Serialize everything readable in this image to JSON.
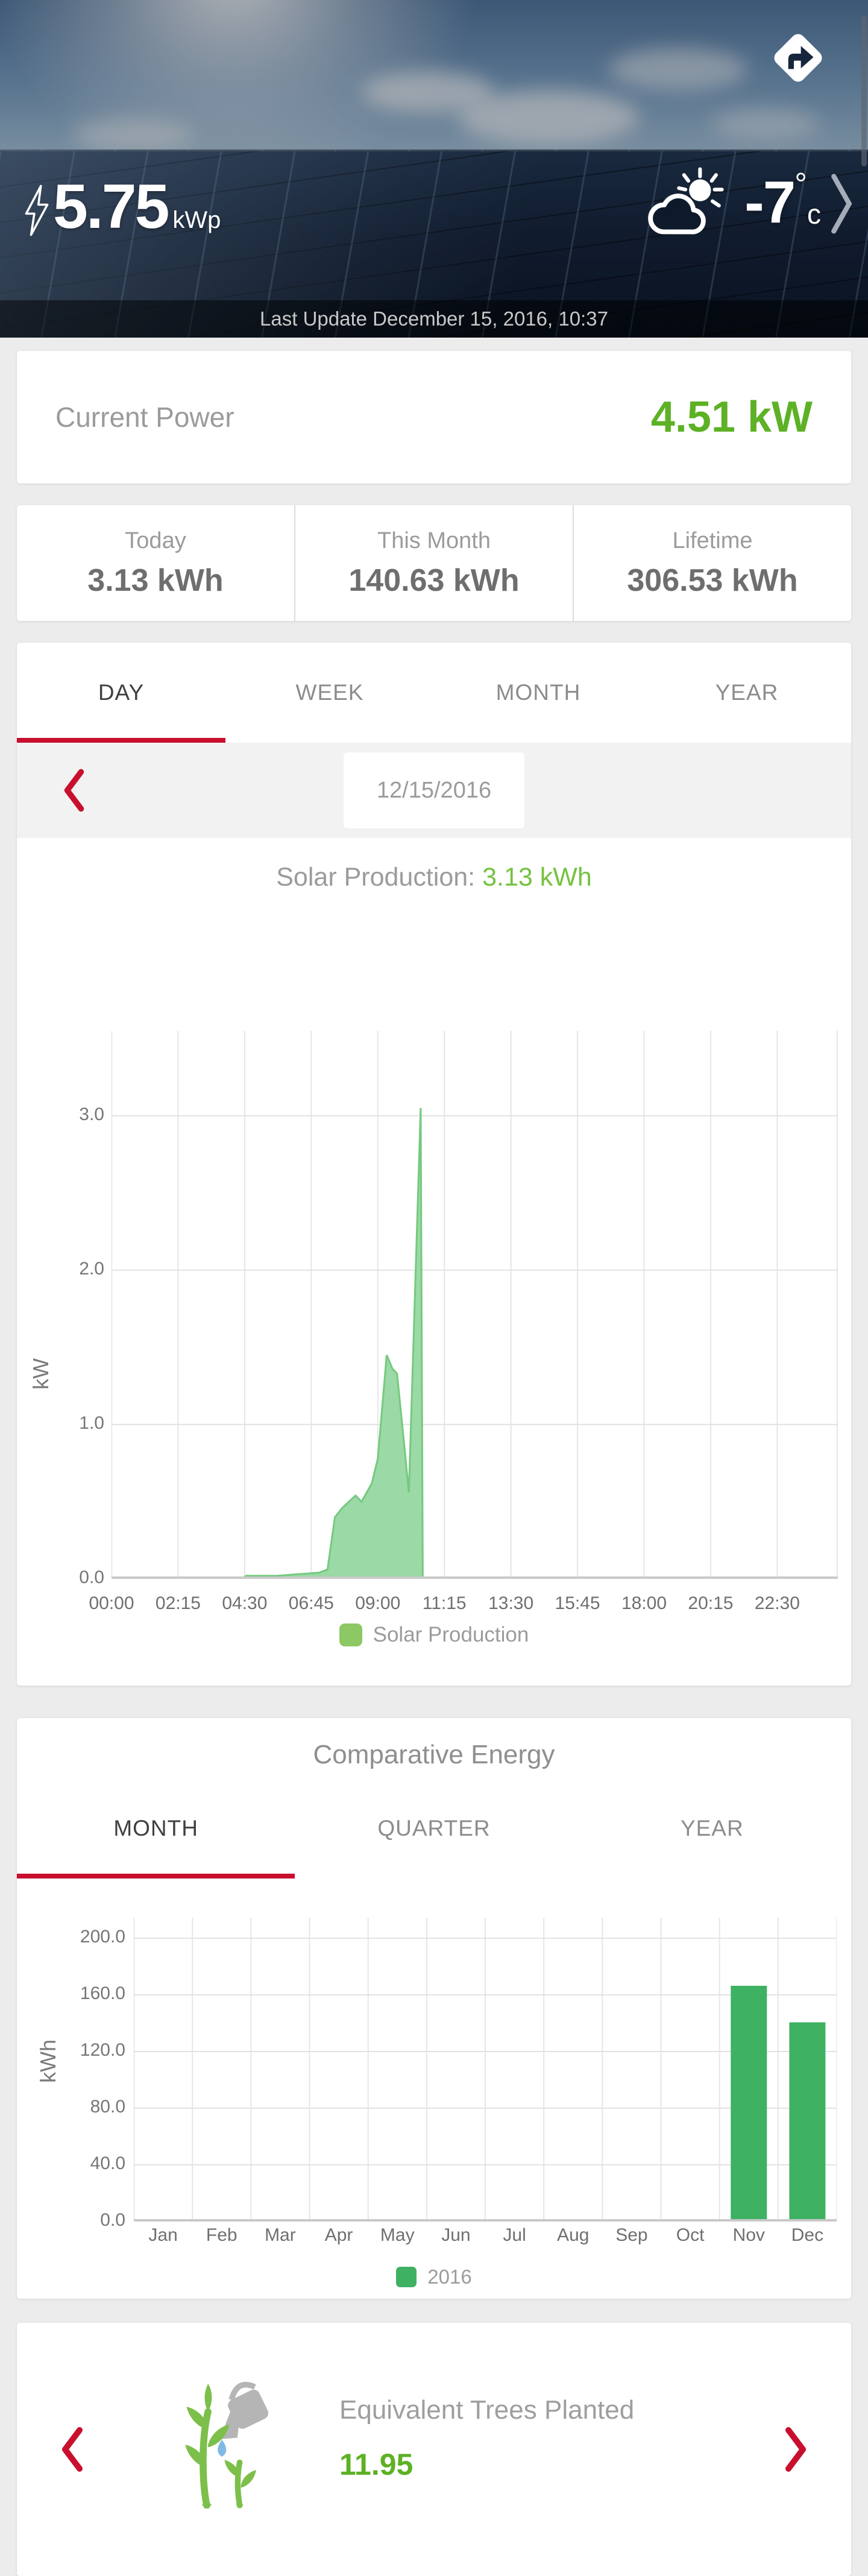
{
  "colors": {
    "accent_red": "#c8102e",
    "accent_green": "#5cb224",
    "light_green": "#76c13e",
    "area_fill": "#9bdaa6",
    "area_stroke": "#74c97e",
    "area_legend_swatch": "#8cc965",
    "bar_green": "#3eb163"
  },
  "icons": {
    "share": "navigate-arrow-icon",
    "weather": "sun-behind-cloud-icon",
    "power": "lightning-bolt-icon",
    "prev": "chevron-left-icon",
    "next": "chevron-right-icon",
    "environment": "watering-plant-icon"
  },
  "header": {
    "system_size": "5.75",
    "system_size_unit": "kWp",
    "temperature": "-7",
    "degree_symbol": "°",
    "temperature_unit": "c",
    "last_update": "Last Update December 15, 2016, 10:37"
  },
  "current_power": {
    "label": "Current Power",
    "value": "4.51 kW"
  },
  "energy_stats": [
    {
      "label": "Today",
      "value": "3.13 kWh"
    },
    {
      "label": "This Month",
      "value": "140.63 kWh"
    },
    {
      "label": "Lifetime",
      "value": "306.53 kWh"
    }
  ],
  "period_tabs": {
    "items": [
      {
        "label": "DAY"
      },
      {
        "label": "WEEK"
      },
      {
        "label": "MONTH"
      },
      {
        "label": "YEAR"
      }
    ],
    "active_index": 0
  },
  "date_nav": {
    "date": "12/15/2016"
  },
  "production_summary": {
    "label": "Solar Production:",
    "value": "3.13 kWh"
  },
  "comparative": {
    "title": "Comparative Energy",
    "tabs": {
      "items": [
        {
          "label": "MONTH"
        },
        {
          "label": "QUARTER"
        },
        {
          "label": "YEAR"
        }
      ],
      "active_index": 0
    }
  },
  "trees": {
    "label": "Equivalent Trees Planted",
    "value": "11.95"
  },
  "chart_data": [
    {
      "type": "area",
      "title": "Solar Production (Day view, 12/15/2016)",
      "ylabel": "kW",
      "xlabel": "",
      "x_ticks": [
        {
          "label": "00:00",
          "hour": 0
        },
        {
          "label": "02:15",
          "hour": 2.25
        },
        {
          "label": "04:30",
          "hour": 4.5
        },
        {
          "label": "06:45",
          "hour": 6.75
        },
        {
          "label": "09:00",
          "hour": 9
        },
        {
          "label": "11:15",
          "hour": 11.25
        },
        {
          "label": "13:30",
          "hour": 13.5
        },
        {
          "label": "15:45",
          "hour": 15.75
        },
        {
          "label": "18:00",
          "hour": 18
        },
        {
          "label": "20:15",
          "hour": 20.25
        },
        {
          "label": "22:30",
          "hour": 22.5
        }
      ],
      "y_ticks": [
        {
          "label": "0.0",
          "value": 0
        },
        {
          "label": "1.0",
          "value": 1
        },
        {
          "label": "2.0",
          "value": 2
        },
        {
          "label": "3.0",
          "value": 3
        }
      ],
      "xlim_hours": [
        0,
        24.55
      ],
      "ylim": [
        0,
        3.55
      ],
      "legend": [
        {
          "label": "Solar Production"
        }
      ],
      "series": [
        {
          "name": "Solar Production",
          "points_hour_kw": [
            [
              0,
              0
            ],
            [
              2.25,
              0
            ],
            [
              4.4,
              0
            ],
            [
              4.55,
              0.02
            ],
            [
              5.6,
              0.02
            ],
            [
              6.3,
              0.03
            ],
            [
              7.0,
              0.04
            ],
            [
              7.3,
              0.06
            ],
            [
              7.55,
              0.4
            ],
            [
              7.8,
              0.46
            ],
            [
              8.25,
              0.54
            ],
            [
              8.45,
              0.5
            ],
            [
              8.8,
              0.62
            ],
            [
              9.0,
              0.78
            ],
            [
              9.3,
              1.45
            ],
            [
              9.5,
              1.36
            ],
            [
              9.65,
              1.33
            ],
            [
              9.85,
              0.95
            ],
            [
              10.05,
              0.56
            ],
            [
              10.45,
              3.05
            ],
            [
              10.52,
              0
            ]
          ]
        }
      ]
    },
    {
      "type": "bar",
      "title": "Comparative Energy (Month view)",
      "ylabel": "kWh",
      "xlabel": "",
      "categories": [
        "Jan",
        "Feb",
        "Mar",
        "Apr",
        "May",
        "Jun",
        "Jul",
        "Aug",
        "Sep",
        "Oct",
        "Nov",
        "Dec"
      ],
      "y_ticks": [
        {
          "label": "0.0",
          "value": 0
        },
        {
          "label": "40.0",
          "value": 40
        },
        {
          "label": "80.0",
          "value": 80
        },
        {
          "label": "120.0",
          "value": 120
        },
        {
          "label": "160.0",
          "value": 160
        },
        {
          "label": "200.0",
          "value": 200
        }
      ],
      "ylim": [
        0,
        214.5
      ],
      "legend": [
        {
          "label": "2016"
        }
      ],
      "series": [
        {
          "name": "2016",
          "values": [
            0,
            0,
            0,
            0,
            0,
            0,
            0,
            0,
            0,
            0,
            166.4,
            140.63
          ]
        }
      ]
    }
  ]
}
